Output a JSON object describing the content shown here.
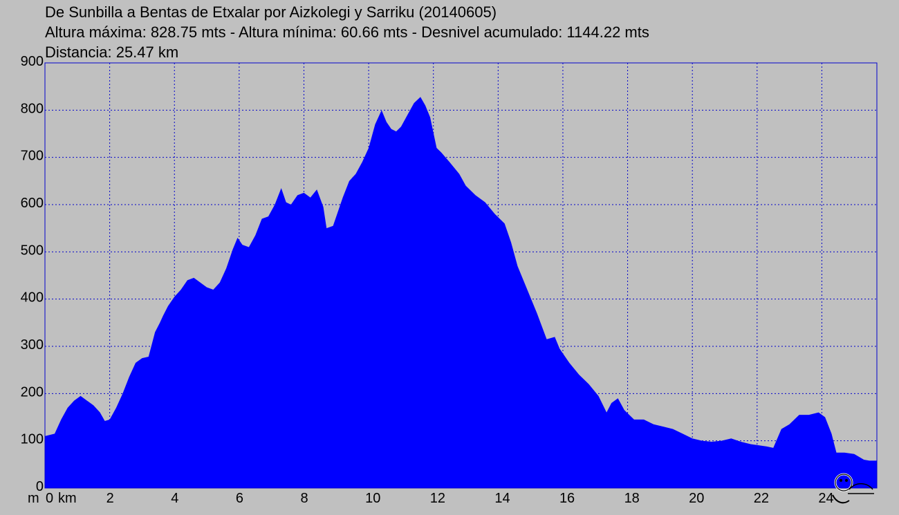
{
  "title_lines": [
    "De Sunbilla a Bentas de Etxalar por Aizkolegi y Sarriku (20140605)",
    "Altura máxima: 828.75 mts - Altura mínima: 60.66 mts - Desnivel acumulado: 1144.22 mts",
    "Distancia: 25.47 km"
  ],
  "colors": {
    "background": "#c0c0c0",
    "fill": "#0000ff",
    "grid": "#0000cc"
  },
  "chart_data": {
    "type": "area",
    "xlabel": "km",
    "ylabel": "m",
    "xlim": [
      0,
      25.7
    ],
    "ylim": [
      0,
      900
    ],
    "x_ticks": [
      0,
      2,
      4,
      6,
      8,
      10,
      12,
      14,
      16,
      18,
      20,
      22,
      24
    ],
    "y_ticks": [
      0,
      100,
      200,
      300,
      400,
      500,
      600,
      700,
      800,
      900
    ],
    "grid": true,
    "series": [
      {
        "x": [
          0,
          0.3,
          0.5,
          0.7,
          0.9,
          1.1,
          1.3,
          1.5,
          1.7,
          1.85,
          2.0,
          2.2,
          2.4,
          2.6,
          2.8,
          3.0,
          3.2,
          3.4,
          3.55,
          3.65,
          3.8,
          4.0,
          4.2,
          4.4,
          4.6,
          4.8,
          5.0,
          5.2,
          5.4,
          5.6,
          5.8,
          5.95,
          6.1,
          6.3,
          6.5,
          6.7,
          6.9,
          7.1,
          7.3,
          7.45,
          7.6,
          7.8,
          8.0,
          8.2,
          8.4,
          8.6,
          8.7,
          8.9,
          9.0,
          9.2,
          9.4,
          9.6,
          9.8,
          10.0,
          10.2,
          10.4,
          10.55,
          10.7,
          10.85,
          11.0,
          11.2,
          11.4,
          11.6,
          11.75,
          11.9,
          12.1,
          12.25,
          12.5,
          12.8,
          13.0,
          13.3,
          13.6,
          13.9,
          14.2,
          14.4,
          14.6,
          14.9,
          15.2,
          15.5,
          15.75,
          15.9,
          16.2,
          16.5,
          16.8,
          17.1,
          17.35,
          17.5,
          17.7,
          17.9,
          18.2,
          18.5,
          18.8,
          19.1,
          19.4,
          19.7,
          20.0,
          20.3,
          20.6,
          20.9,
          21.2,
          21.5,
          21.8,
          22.1,
          22.3,
          22.5,
          22.75,
          23.0,
          23.3,
          23.6,
          23.9,
          24.1,
          24.3,
          24.45,
          24.7,
          25.0,
          25.3,
          25.47,
          25.7
        ],
        "y": [
          110,
          115,
          145,
          170,
          185,
          195,
          185,
          175,
          160,
          142,
          145,
          170,
          200,
          235,
          265,
          275,
          278,
          330,
          350,
          365,
          385,
          405,
          420,
          440,
          445,
          435,
          425,
          420,
          435,
          465,
          505,
          530,
          515,
          510,
          535,
          570,
          575,
          600,
          635,
          605,
          600,
          620,
          625,
          615,
          632,
          595,
          550,
          555,
          575,
          615,
          650,
          665,
          690,
          720,
          770,
          800,
          775,
          760,
          755,
          765,
          790,
          815,
          828,
          810,
          785,
          720,
          710,
          690,
          665,
          640,
          620,
          605,
          580,
          560,
          520,
          470,
          420,
          370,
          315,
          320,
          295,
          265,
          240,
          220,
          195,
          160,
          180,
          190,
          165,
          145,
          145,
          135,
          130,
          125,
          115,
          105,
          100,
          98,
          100,
          105,
          98,
          93,
          90,
          88,
          85,
          125,
          135,
          155,
          155,
          160,
          150,
          115,
          75,
          75,
          72,
          60,
          58,
          58
        ]
      }
    ]
  }
}
